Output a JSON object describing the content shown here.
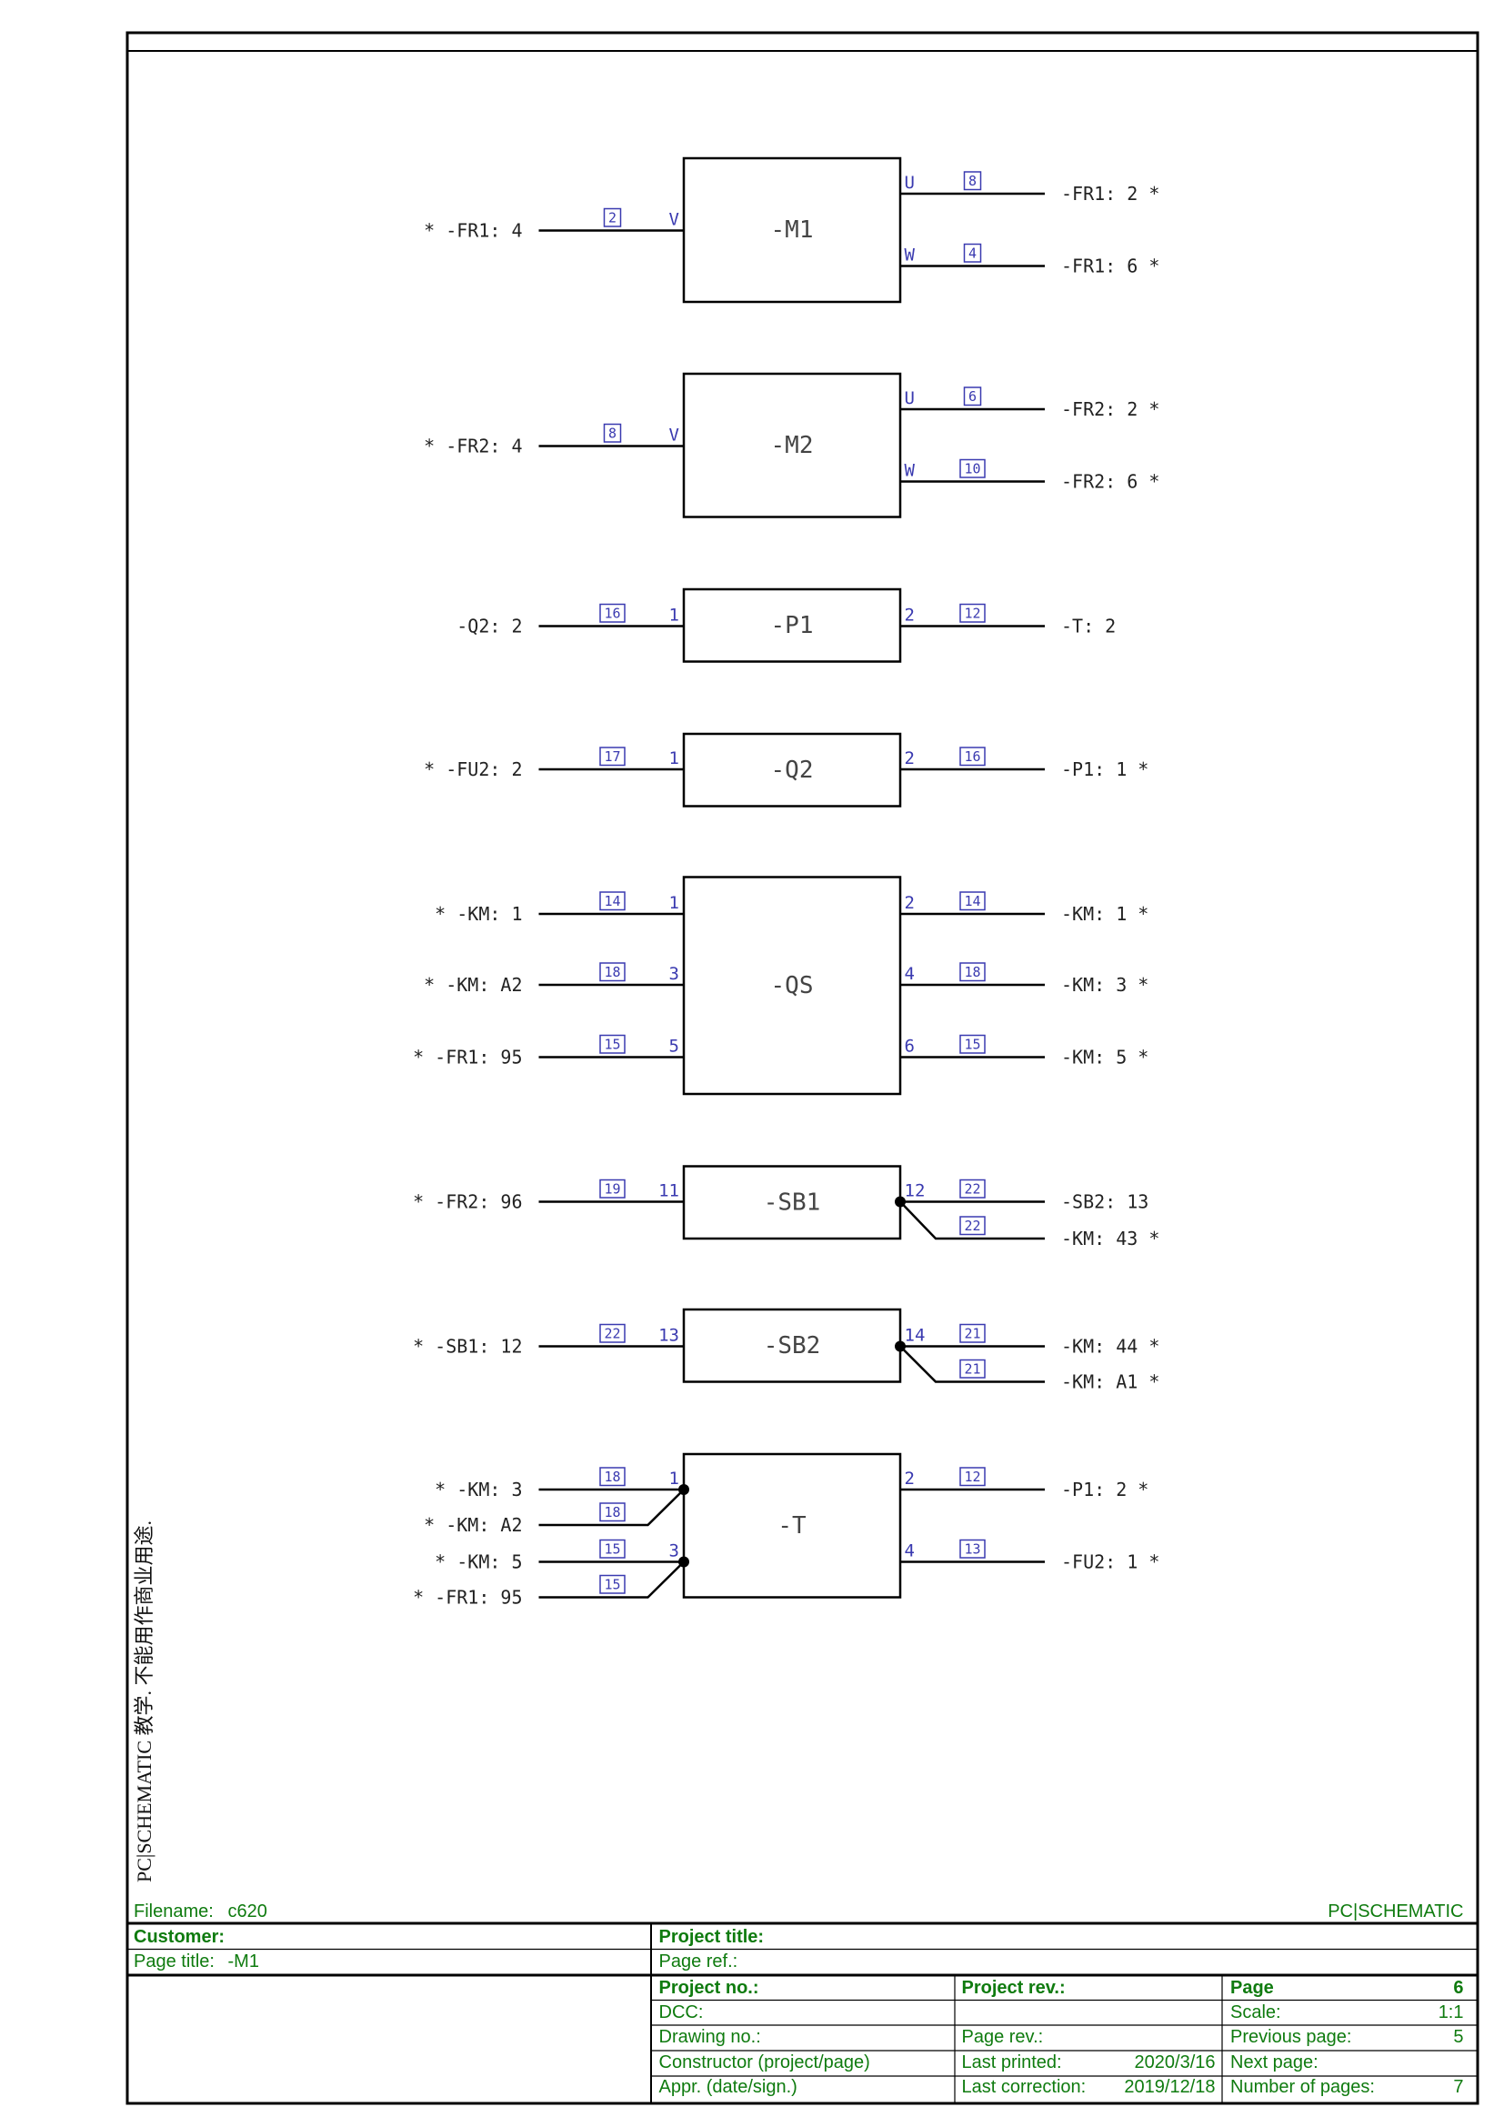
{
  "watermark": "PC|SCHEMATIC 教学. 不能用作商业用途.",
  "colors": {
    "wire": "#000000",
    "pin": "#3a3ab0",
    "title_block": "#0f7b0f"
  },
  "components": [
    {
      "name": "-M1",
      "left": [
        {
          "label": "* -FR1: 4",
          "wire": "2",
          "pin": "V"
        }
      ],
      "right": [
        {
          "label": "-FR1: 2 *",
          "wire": "8",
          "pin": "U"
        },
        {
          "label": "-FR1: 6 *",
          "wire": "4",
          "pin": "W"
        }
      ]
    },
    {
      "name": "-M2",
      "left": [
        {
          "label": "* -FR2: 4",
          "wire": "8",
          "pin": "V"
        }
      ],
      "right": [
        {
          "label": "-FR2: 2 *",
          "wire": "6",
          "pin": "U"
        },
        {
          "label": "-FR2: 6 *",
          "wire": "10",
          "pin": "W"
        }
      ]
    },
    {
      "name": "-P1",
      "left": [
        {
          "label": "-Q2: 2",
          "wire": "16",
          "pin": "1"
        }
      ],
      "right": [
        {
          "label": "-T: 2",
          "wire": "12",
          "pin": "2"
        }
      ]
    },
    {
      "name": "-Q2",
      "left": [
        {
          "label": "* -FU2: 2",
          "wire": "17",
          "pin": "1"
        }
      ],
      "right": [
        {
          "label": "-P1: 1 *",
          "wire": "16",
          "pin": "2"
        }
      ]
    },
    {
      "name": "-QS",
      "left": [
        {
          "label": "* -KM: 1",
          "wire": "14",
          "pin": "1"
        },
        {
          "label": "* -KM: A2",
          "wire": "18",
          "pin": "3"
        },
        {
          "label": "* -FR1: 95",
          "wire": "15",
          "pin": "5"
        }
      ],
      "right": [
        {
          "label": "-KM: 1 *",
          "wire": "14",
          "pin": "2"
        },
        {
          "label": "-KM: 3 *",
          "wire": "18",
          "pin": "4"
        },
        {
          "label": "-KM: 5 *",
          "wire": "15",
          "pin": "6"
        }
      ]
    },
    {
      "name": "-SB1",
      "left": [
        {
          "label": "* -FR2: 96",
          "wire": "19",
          "pin": "11"
        }
      ],
      "right": [
        {
          "label": "-SB2: 13",
          "wire": "22",
          "pin": "12"
        },
        {
          "label": "-KM: 43 *",
          "wire": "22"
        }
      ]
    },
    {
      "name": "-SB2",
      "left": [
        {
          "label": "* -SB1: 12",
          "wire": "22",
          "pin": "13"
        }
      ],
      "right": [
        {
          "label": "-KM: 44 *",
          "wire": "21",
          "pin": "14"
        },
        {
          "label": "-KM: A1 *",
          "wire": "21"
        }
      ]
    },
    {
      "name": "-T",
      "left": [
        {
          "label": "* -KM: 3",
          "wire": "18",
          "pin": "1"
        },
        {
          "label": "* -KM: A2",
          "wire": "18"
        },
        {
          "label": "* -KM: 5",
          "wire": "15",
          "pin": "3"
        },
        {
          "label": "* -FR1: 95",
          "wire": "15"
        }
      ],
      "right": [
        {
          "label": "-P1: 2 *",
          "wire": "12",
          "pin": "2"
        },
        {
          "label": "-FU2: 1 *",
          "wire": "13",
          "pin": "4"
        }
      ]
    }
  ],
  "title_block": {
    "filename_label": "Filename:",
    "filename": "c620",
    "brand": "PC|SCHEMATIC",
    "customer_label": "Customer:",
    "project_title_label": "Project title:",
    "page_title_label": "Page title:",
    "page_title": "-M1",
    "page_ref_label": "Page ref.:",
    "project_no_label": "Project no.:",
    "project_rev_label": "Project rev.:",
    "page_label": "Page",
    "page": "6",
    "dcc_label": "DCC:",
    "scale_label": "Scale:",
    "scale": "1:1",
    "drawing_no_label": "Drawing no.:",
    "page_rev_label": "Page rev.:",
    "previous_page_label": "Previous page:",
    "previous_page": "5",
    "constructor_label": "Constructor (project/page)",
    "last_printed_label": "Last printed:",
    "last_printed": "2020/3/16",
    "next_page_label": "Next page:",
    "appr_label": "Appr. (date/sign.)",
    "last_correction_label": "Last correction:",
    "last_correction": "2019/12/18",
    "number_of_pages_label": "Number of pages:",
    "number_of_pages": "7"
  }
}
